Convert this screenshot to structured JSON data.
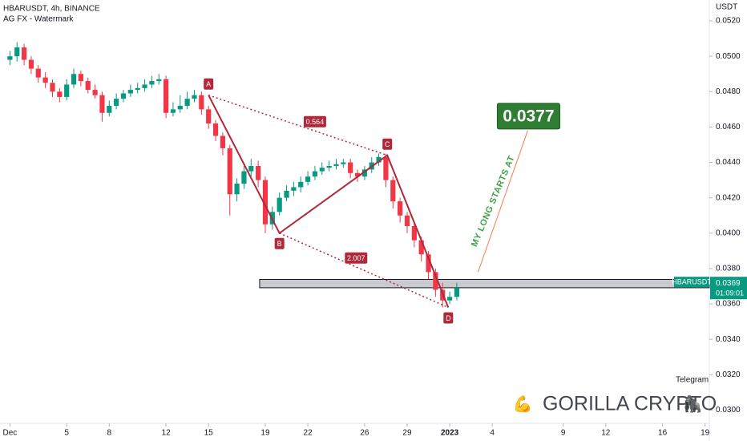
{
  "chart_data": {
    "type": "candlestick",
    "title": "HBARUSDT, 4h, BINANCE",
    "subtitle": "AG FX - Watermark",
    "y_axis_label": "USDT",
    "xlim": [
      -0.7,
      49.3
    ],
    "xticks": [
      {
        "value": 0,
        "label": "Dec"
      },
      {
        "value": 4,
        "label": "5"
      },
      {
        "value": 7,
        "label": "8"
      },
      {
        "value": 11,
        "label": "12"
      },
      {
        "value": 14,
        "label": "15"
      },
      {
        "value": 18,
        "label": "19"
      },
      {
        "value": 21,
        "label": "22"
      },
      {
        "value": 25,
        "label": "26"
      },
      {
        "value": 28,
        "label": "29"
      },
      {
        "value": 31,
        "label": "2023"
      },
      {
        "value": 34,
        "label": "4"
      },
      {
        "value": 39,
        "label": "9"
      },
      {
        "value": 42,
        "label": "12"
      },
      {
        "value": 46,
        "label": "16"
      },
      {
        "value": 49,
        "label": "19"
      }
    ],
    "ylim": [
      0.02925,
      0.05318
    ],
    "yticks": [
      {
        "value": 0.03,
        "label": "0.0300"
      },
      {
        "value": 0.032,
        "label": "0.0320"
      },
      {
        "value": 0.034,
        "label": "0.0340"
      },
      {
        "value": 0.036,
        "label": "0.0360"
      },
      {
        "value": 0.038,
        "label": "0.0380"
      },
      {
        "value": 0.04,
        "label": "0.0400"
      },
      {
        "value": 0.042,
        "label": "0.0420"
      },
      {
        "value": 0.044,
        "label": "0.0440"
      },
      {
        "value": 0.046,
        "label": "0.0460"
      },
      {
        "value": 0.048,
        "label": "0.0480"
      },
      {
        "value": 0.05,
        "label": "0.0500"
      },
      {
        "value": 0.052,
        "label": "0.0520"
      }
    ],
    "up_color": "#089981",
    "down_color": "#f23645",
    "x": [
      0,
      0.5,
      1,
      1.5,
      2,
      2.5,
      3,
      3.5,
      4,
      4.5,
      5,
      5.5,
      6,
      6.5,
      7,
      7.5,
      8,
      8.5,
      9,
      9.5,
      10,
      10.5,
      11,
      11.5,
      12,
      12.5,
      13,
      13.5,
      14,
      14.5,
      15,
      15.5,
      16,
      16.5,
      17,
      17.5,
      18,
      18.5,
      19,
      19.5,
      20,
      20.5,
      21,
      21.5,
      22,
      22.5,
      23,
      23.5,
      24,
      24.5,
      25,
      25.5,
      26,
      26.5,
      27,
      27.5,
      28,
      28.5,
      29,
      29.5,
      30,
      30.5,
      31,
      31.5
    ],
    "open": [
      0.0498,
      0.05,
      0.0505,
      0.0498,
      0.0493,
      0.0488,
      0.0485,
      0.048,
      0.0477,
      0.0484,
      0.049,
      0.0486,
      0.0481,
      0.0478,
      0.0468,
      0.0472,
      0.0476,
      0.0479,
      0.0481,
      0.0482,
      0.0484,
      0.0486,
      0.0487,
      0.0468,
      0.047,
      0.0472,
      0.0476,
      0.0478,
      0.047,
      0.0462,
      0.0455,
      0.0448,
      0.0422,
      0.0428,
      0.0435,
      0.0438,
      0.043,
      0.0405,
      0.0412,
      0.042,
      0.0424,
      0.0426,
      0.0429,
      0.0432,
      0.0435,
      0.0437,
      0.0438,
      0.0439,
      0.044,
      0.0434,
      0.0432,
      0.0436,
      0.044,
      0.0443,
      0.043,
      0.0418,
      0.041,
      0.0404,
      0.0396,
      0.0388,
      0.0378,
      0.0368,
      0.0362,
      0.0364
    ],
    "high": [
      0.0503,
      0.0508,
      0.0507,
      0.05,
      0.0495,
      0.0491,
      0.0487,
      0.0482,
      0.0487,
      0.0493,
      0.0492,
      0.0488,
      0.0484,
      0.048,
      0.0475,
      0.0479,
      0.0481,
      0.0484,
      0.0485,
      0.0487,
      0.0489,
      0.049,
      0.0489,
      0.0474,
      0.0478,
      0.048,
      0.0481,
      0.048,
      0.0472,
      0.0464,
      0.0457,
      0.045,
      0.0431,
      0.0438,
      0.0442,
      0.0441,
      0.0432,
      0.0415,
      0.0423,
      0.0427,
      0.0429,
      0.0432,
      0.0435,
      0.0438,
      0.044,
      0.0441,
      0.0442,
      0.0442,
      0.0442,
      0.0436,
      0.0438,
      0.0443,
      0.0445,
      0.0445,
      0.0432,
      0.042,
      0.0412,
      0.0406,
      0.0398,
      0.039,
      0.038,
      0.0372,
      0.0367,
      0.0372
    ],
    "low": [
      0.0495,
      0.0497,
      0.0495,
      0.049,
      0.0485,
      0.0482,
      0.0477,
      0.0474,
      0.0475,
      0.0482,
      0.0483,
      0.0479,
      0.0476,
      0.0463,
      0.0466,
      0.047,
      0.0474,
      0.0477,
      0.0479,
      0.048,
      0.0482,
      0.0484,
      0.0465,
      0.0466,
      0.0468,
      0.047,
      0.0474,
      0.0467,
      0.0459,
      0.0452,
      0.0444,
      0.041,
      0.0418,
      0.0425,
      0.0432,
      0.0426,
      0.04,
      0.0402,
      0.041,
      0.0418,
      0.0421,
      0.0423,
      0.0427,
      0.043,
      0.0433,
      0.0435,
      0.0436,
      0.0437,
      0.0431,
      0.0429,
      0.043,
      0.0434,
      0.0438,
      0.0426,
      0.0414,
      0.0406,
      0.04,
      0.0392,
      0.0384,
      0.0374,
      0.0364,
      0.0358,
      0.036,
      0.0362
    ],
    "close": [
      0.05,
      0.0505,
      0.0498,
      0.0493,
      0.0488,
      0.0485,
      0.048,
      0.0477,
      0.0484,
      0.049,
      0.0486,
      0.0481,
      0.0478,
      0.0468,
      0.0472,
      0.0476,
      0.0479,
      0.0481,
      0.0482,
      0.0484,
      0.0486,
      0.0487,
      0.0468,
      0.047,
      0.0472,
      0.0476,
      0.0478,
      0.047,
      0.0462,
      0.0455,
      0.0448,
      0.0422,
      0.0428,
      0.0435,
      0.0438,
      0.043,
      0.0405,
      0.0412,
      0.042,
      0.0424,
      0.0426,
      0.0429,
      0.0432,
      0.0435,
      0.0437,
      0.0438,
      0.0439,
      0.044,
      0.0434,
      0.0432,
      0.0436,
      0.044,
      0.0443,
      0.043,
      0.0418,
      0.041,
      0.0404,
      0.0396,
      0.0388,
      0.0378,
      0.0368,
      0.0362,
      0.0364,
      0.0369
    ],
    "pattern": {
      "color": "#b2283b",
      "labels": [
        "A",
        "B",
        "C",
        "D"
      ],
      "x": [
        14,
        19,
        26.6,
        30.9
      ],
      "y": [
        0.0478,
        0.04,
        0.0444,
        0.0358
      ]
    },
    "ratios": [
      {
        "label": "0.564",
        "x": 21.5,
        "y": 0.0463
      },
      {
        "label": "2.007",
        "x": 24.4,
        "y": 0.0386
      }
    ],
    "zone": {
      "x_start": 17.6,
      "low": 0.03705,
      "high": 0.03725
    },
    "target": {
      "value": 0.0377,
      "text": "MY LONG STARTS AT",
      "x": [
        33,
        36.5
      ],
      "y": [
        0.0378,
        0.0458
      ]
    },
    "last_price": {
      "symbol": "HBARUSDT",
      "value": 0.0369,
      "countdown": "01:09:01"
    },
    "footer_link": "Telegram",
    "brand": {
      "left_icon": "💪",
      "name": "GORILLA CRYPTO",
      "right_icon": "🦍"
    }
  }
}
